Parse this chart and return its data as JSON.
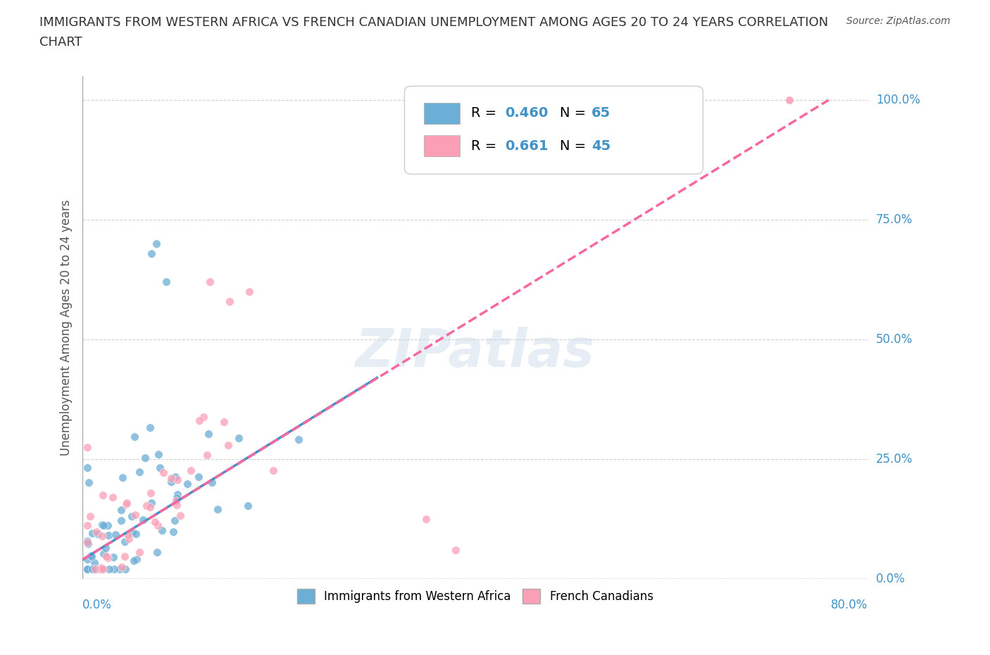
{
  "title_line1": "IMMIGRANTS FROM WESTERN AFRICA VS FRENCH CANADIAN UNEMPLOYMENT AMONG AGES 20 TO 24 YEARS CORRELATION",
  "title_line2": "CHART",
  "source": "Source: ZipAtlas.com",
  "xlabel_bottom_left": "0.0%",
  "xlabel_bottom_right": "80.0%",
  "ylabel": "Unemployment Among Ages 20 to 24 years",
  "y_tick_labels": [
    "0.0%",
    "25.0%",
    "50.0%",
    "75.0%",
    "100.0%"
  ],
  "y_tick_values": [
    0.0,
    0.25,
    0.5,
    0.75,
    1.0
  ],
  "x_lim": [
    0.0,
    0.8
  ],
  "y_lim": [
    0.0,
    1.05
  ],
  "watermark": "ZIPatlas",
  "blue_color": "#6baed6",
  "pink_color": "#fa9fb5",
  "blue_line_color": "#4292c6",
  "pink_line_color": "#f768a1",
  "label_blue": "Immigrants from Western Africa",
  "label_pink": "French Canadians",
  "grid_color": "#d0d0d0",
  "background_color": "#ffffff",
  "title_color": "#333333",
  "tick_label_color": "#4292c6"
}
